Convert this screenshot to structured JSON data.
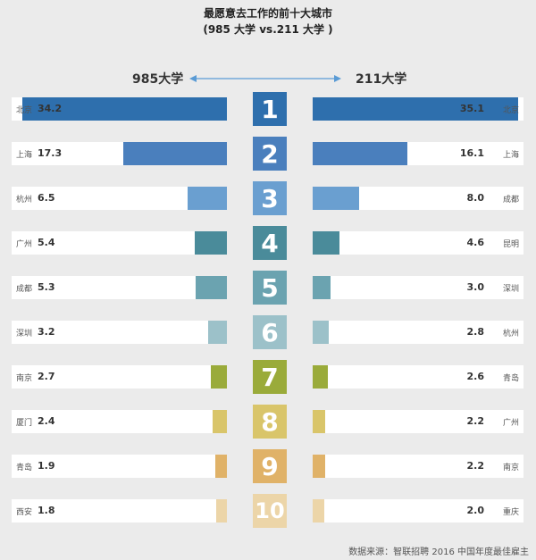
{
  "title_line1": "最愿意去工作的前十大城市",
  "title_line2": "(985 大学 vs.211 大学 )",
  "source": "数据来源：智联招聘 2016 中国年度最佳雇主",
  "chart_data": {
    "type": "bar",
    "left_label": "985大学",
    "right_label": "211大学",
    "ranks": [
      "1",
      "2",
      "3",
      "4",
      "5",
      "6",
      "7",
      "8",
      "9",
      "10"
    ],
    "left": [
      {
        "city": "北京",
        "value": 34.2
      },
      {
        "city": "上海",
        "value": 17.3
      },
      {
        "city": "杭州",
        "value": 6.5
      },
      {
        "city": "广州",
        "value": 5.4
      },
      {
        "city": "成都",
        "value": 5.3
      },
      {
        "city": "深圳",
        "value": 3.2
      },
      {
        "city": "南京",
        "value": 2.7
      },
      {
        "city": "厦门",
        "value": 2.4
      },
      {
        "city": "青岛",
        "value": 1.9
      },
      {
        "city": "西安",
        "value": 1.8
      }
    ],
    "right": [
      {
        "city": "北京",
        "value": 35.1
      },
      {
        "city": "上海",
        "value": 16.1
      },
      {
        "city": "成都",
        "value": 8.0
      },
      {
        "city": "昆明",
        "value": 4.6
      },
      {
        "city": "深圳",
        "value": 3.0
      },
      {
        "city": "杭州",
        "value": 2.8
      },
      {
        "city": "青岛",
        "value": 2.6
      },
      {
        "city": "广州",
        "value": 2.2
      },
      {
        "city": "南京",
        "value": 2.2
      },
      {
        "city": "重庆",
        "value": 2.0
      }
    ],
    "colors": [
      "#2e6fad",
      "#4a7fbd",
      "#6a9fd0",
      "#4a8b9a",
      "#6ba3b0",
      "#9cc1c9",
      "#9aab3a",
      "#d9c56a",
      "#e0b268",
      "#ecd5a8"
    ]
  }
}
